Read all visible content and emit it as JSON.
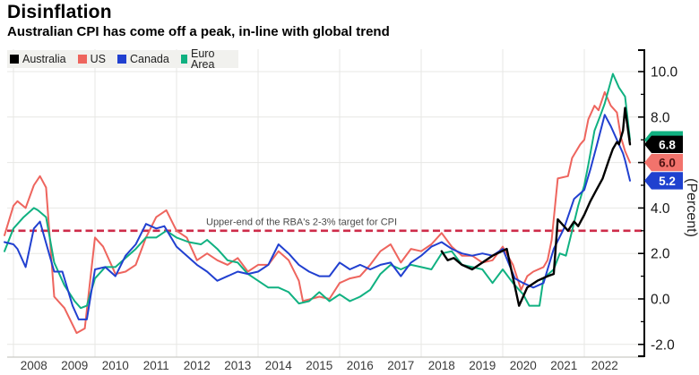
{
  "header": {
    "title": "Disinflation",
    "subtitle": "Australian CPI has come off a peak, in-line with global trend"
  },
  "legend": {
    "items": [
      {
        "label": "Australia",
        "color": "#000000"
      },
      {
        "label": "US",
        "color": "#ee655e"
      },
      {
        "label": "Canada",
        "color": "#2140d0"
      },
      {
        "label": "Euro Area",
        "color": "#10b181"
      }
    ]
  },
  "annotation": {
    "text": "Upper-end of the RBA's 2-3% target for CPI",
    "value": 3.0,
    "line_color": "#ce2b49",
    "text_color": "#4a4a4a"
  },
  "axis": {
    "y_label": "(Percent)",
    "y_ticks": [
      {
        "v": 10,
        "label": "10.0"
      },
      {
        "v": 8,
        "label": "8.0"
      },
      {
        "v": 6,
        "label": ""
      },
      {
        "v": 4,
        "label": "4.0"
      },
      {
        "v": 2,
        "label": "2.0"
      },
      {
        "v": 0,
        "label": "0.0"
      },
      {
        "v": -2,
        "label": "-2.0"
      }
    ],
    "y_minor_ticks": [
      9,
      7,
      5,
      3,
      1,
      -1
    ],
    "x_grid_years": [
      2008,
      2010,
      2012,
      2014,
      2016,
      2018,
      2020,
      2022
    ],
    "x_labels": [
      "2008",
      "2009",
      "2010",
      "2011",
      "2012",
      "2013",
      "2014",
      "2015",
      "2016",
      "2017",
      "2018",
      "2019",
      "2020",
      "2021",
      "2022"
    ]
  },
  "chart_data": {
    "type": "line",
    "title": "Disinflation",
    "subtitle": "Australian CPI has come off a peak, in-line with global trend",
    "xlabel": "",
    "ylabel": "(Percent)",
    "xlim": [
      2007.7,
      2023.45
    ],
    "ylim": [
      -2.6,
      10.6
    ],
    "grid": true,
    "legend_position": "top-left",
    "target_line": {
      "y": 3.0,
      "label": "Upper-end of the RBA's 2-3% target for CPI"
    },
    "series": [
      {
        "name": "Australia",
        "color": "#000000",
        "width": 2.4,
        "tag": {
          "text": "6.8",
          "bg": "#000000",
          "fg": "#ffffff",
          "value": 6.8
        },
        "points": [
          [
            2018.5,
            2.1
          ],
          [
            2018.65,
            1.7
          ],
          [
            2018.8,
            1.8
          ],
          [
            2019.0,
            1.5
          ],
          [
            2019.25,
            1.3
          ],
          [
            2019.5,
            1.6
          ],
          [
            2019.75,
            1.9
          ],
          [
            2020.1,
            2.2
          ],
          [
            2020.4,
            -0.3
          ],
          [
            2020.6,
            0.5
          ],
          [
            2020.85,
            0.8
          ],
          [
            2021.1,
            1.0
          ],
          [
            2021.25,
            1.1
          ],
          [
            2021.35,
            3.5
          ],
          [
            2021.5,
            3.2
          ],
          [
            2021.6,
            3.0
          ],
          [
            2021.75,
            3.4
          ],
          [
            2021.85,
            3.2
          ],
          [
            2022.0,
            3.7
          ],
          [
            2022.15,
            4.3
          ],
          [
            2022.3,
            4.8
          ],
          [
            2022.45,
            5.3
          ],
          [
            2022.6,
            6.1
          ],
          [
            2022.7,
            6.6
          ],
          [
            2022.8,
            6.9
          ],
          [
            2022.85,
            6.8
          ],
          [
            2022.95,
            7.4
          ],
          [
            2023.0,
            8.4
          ],
          [
            2023.12,
            6.8
          ]
        ]
      },
      {
        "name": "US",
        "color": "#ee655e",
        "width": 2,
        "tag": {
          "text": "6.0",
          "bg": "#f2736c",
          "fg": "#4d1211",
          "value": 6.0
        },
        "points": [
          [
            2007.78,
            2.8
          ],
          [
            2008.0,
            4.1
          ],
          [
            2008.1,
            4.3
          ],
          [
            2008.3,
            4.0
          ],
          [
            2008.5,
            5.0
          ],
          [
            2008.65,
            5.4
          ],
          [
            2008.8,
            4.9
          ],
          [
            2009.0,
            0.1
          ],
          [
            2009.25,
            -0.4
          ],
          [
            2009.55,
            -1.5
          ],
          [
            2009.75,
            -1.3
          ],
          [
            2010.0,
            2.7
          ],
          [
            2010.2,
            2.3
          ],
          [
            2010.5,
            1.1
          ],
          [
            2010.75,
            1.2
          ],
          [
            2011.0,
            1.5
          ],
          [
            2011.25,
            2.7
          ],
          [
            2011.5,
            3.6
          ],
          [
            2011.75,
            3.9
          ],
          [
            2012.0,
            3.0
          ],
          [
            2012.25,
            2.7
          ],
          [
            2012.5,
            1.7
          ],
          [
            2012.75,
            2.0
          ],
          [
            2013.0,
            1.7
          ],
          [
            2013.25,
            1.5
          ],
          [
            2013.5,
            1.8
          ],
          [
            2013.75,
            1.2
          ],
          [
            2014.0,
            1.5
          ],
          [
            2014.25,
            1.5
          ],
          [
            2014.5,
            2.1
          ],
          [
            2014.75,
            1.7
          ],
          [
            2015.0,
            0.8
          ],
          [
            2015.1,
            -0.1
          ],
          [
            2015.3,
            0.0
          ],
          [
            2015.5,
            0.1
          ],
          [
            2015.75,
            0.0
          ],
          [
            2016.0,
            0.7
          ],
          [
            2016.25,
            0.9
          ],
          [
            2016.5,
            1.0
          ],
          [
            2016.75,
            1.5
          ],
          [
            2017.0,
            2.1
          ],
          [
            2017.25,
            2.4
          ],
          [
            2017.5,
            1.6
          ],
          [
            2017.75,
            2.2
          ],
          [
            2018.0,
            2.1
          ],
          [
            2018.25,
            2.4
          ],
          [
            2018.5,
            2.9
          ],
          [
            2018.75,
            2.3
          ],
          [
            2019.0,
            1.9
          ],
          [
            2019.25,
            1.9
          ],
          [
            2019.5,
            1.6
          ],
          [
            2019.75,
            1.7
          ],
          [
            2020.0,
            2.3
          ],
          [
            2020.25,
            1.5
          ],
          [
            2020.45,
            0.4
          ],
          [
            2020.6,
            1.0
          ],
          [
            2020.75,
            1.2
          ],
          [
            2021.0,
            1.4
          ],
          [
            2021.1,
            1.7
          ],
          [
            2021.2,
            2.6
          ],
          [
            2021.35,
            5.3
          ],
          [
            2021.6,
            5.4
          ],
          [
            2021.7,
            6.2
          ],
          [
            2021.9,
            6.8
          ],
          [
            2022.0,
            7.0
          ],
          [
            2022.1,
            7.9
          ],
          [
            2022.25,
            8.5
          ],
          [
            2022.35,
            8.3
          ],
          [
            2022.5,
            9.1
          ],
          [
            2022.65,
            8.5
          ],
          [
            2022.8,
            8.2
          ],
          [
            2022.9,
            7.1
          ],
          [
            2023.0,
            6.5
          ],
          [
            2023.12,
            6.0
          ]
        ]
      },
      {
        "name": "Canada",
        "color": "#2140d0",
        "width": 2,
        "tag": {
          "text": "5.2",
          "bg": "#1f41cf",
          "fg": "#ffffff",
          "value": 5.2
        },
        "points": [
          [
            2007.78,
            2.5
          ],
          [
            2008.0,
            2.4
          ],
          [
            2008.1,
            2.2
          ],
          [
            2008.3,
            1.4
          ],
          [
            2008.5,
            3.1
          ],
          [
            2008.65,
            3.4
          ],
          [
            2009.0,
            1.2
          ],
          [
            2009.2,
            1.2
          ],
          [
            2009.45,
            -0.3
          ],
          [
            2009.6,
            -0.9
          ],
          [
            2009.8,
            -0.9
          ],
          [
            2010.0,
            1.3
          ],
          [
            2010.25,
            1.4
          ],
          [
            2010.5,
            1.0
          ],
          [
            2010.75,
            1.9
          ],
          [
            2011.0,
            2.4
          ],
          [
            2011.25,
            3.3
          ],
          [
            2011.5,
            3.1
          ],
          [
            2011.7,
            3.2
          ],
          [
            2012.0,
            2.3
          ],
          [
            2012.25,
            1.9
          ],
          [
            2012.5,
            1.5
          ],
          [
            2012.75,
            1.2
          ],
          [
            2013.0,
            0.8
          ],
          [
            2013.25,
            1.0
          ],
          [
            2013.5,
            1.2
          ],
          [
            2013.75,
            1.1
          ],
          [
            2014.0,
            1.2
          ],
          [
            2014.25,
            1.5
          ],
          [
            2014.5,
            2.4
          ],
          [
            2014.75,
            2.0
          ],
          [
            2015.0,
            1.5
          ],
          [
            2015.25,
            1.2
          ],
          [
            2015.5,
            1.0
          ],
          [
            2015.75,
            1.0
          ],
          [
            2016.0,
            1.6
          ],
          [
            2016.25,
            1.3
          ],
          [
            2016.5,
            1.5
          ],
          [
            2016.75,
            1.3
          ],
          [
            2017.0,
            1.5
          ],
          [
            2017.25,
            1.6
          ],
          [
            2017.5,
            1.0
          ],
          [
            2017.75,
            1.6
          ],
          [
            2018.0,
            1.9
          ],
          [
            2018.25,
            2.3
          ],
          [
            2018.5,
            2.5
          ],
          [
            2018.75,
            2.2
          ],
          [
            2019.0,
            2.0
          ],
          [
            2019.25,
            1.9
          ],
          [
            2019.5,
            2.0
          ],
          [
            2019.75,
            1.9
          ],
          [
            2020.0,
            2.2
          ],
          [
            2020.3,
            0.9
          ],
          [
            2020.5,
            0.7
          ],
          [
            2020.75,
            0.5
          ],
          [
            2021.0,
            0.7
          ],
          [
            2021.25,
            2.2
          ],
          [
            2021.5,
            3.1
          ],
          [
            2021.75,
            4.4
          ],
          [
            2022.0,
            4.8
          ],
          [
            2022.15,
            5.7
          ],
          [
            2022.3,
            6.7
          ],
          [
            2022.5,
            8.1
          ],
          [
            2022.65,
            7.6
          ],
          [
            2022.8,
            7.0
          ],
          [
            2022.95,
            6.4
          ],
          [
            2023.0,
            6.1
          ],
          [
            2023.12,
            5.2
          ]
        ]
      },
      {
        "name": "Euro Area",
        "color": "#10b181",
        "width": 2,
        "tag": {
          "text": "",
          "bg": "#10b181",
          "fg": "#ffffff",
          "value": 7.0,
          "hidden_behind": "Australia"
        },
        "points": [
          [
            2007.78,
            2.1
          ],
          [
            2008.0,
            3.1
          ],
          [
            2008.25,
            3.6
          ],
          [
            2008.5,
            4.0
          ],
          [
            2008.6,
            3.9
          ],
          [
            2008.8,
            3.6
          ],
          [
            2009.0,
            1.6
          ],
          [
            2009.25,
            0.6
          ],
          [
            2009.5,
            -0.1
          ],
          [
            2009.65,
            -0.4
          ],
          [
            2009.8,
            -0.3
          ],
          [
            2010.0,
            0.9
          ],
          [
            2010.25,
            1.4
          ],
          [
            2010.5,
            1.4
          ],
          [
            2010.75,
            1.8
          ],
          [
            2011.0,
            2.2
          ],
          [
            2011.25,
            2.7
          ],
          [
            2011.5,
            2.7
          ],
          [
            2011.75,
            3.0
          ],
          [
            2012.0,
            2.7
          ],
          [
            2012.3,
            2.5
          ],
          [
            2012.6,
            2.4
          ],
          [
            2012.75,
            2.6
          ],
          [
            2013.0,
            2.2
          ],
          [
            2013.25,
            1.7
          ],
          [
            2013.5,
            1.6
          ],
          [
            2013.75,
            1.1
          ],
          [
            2014.0,
            0.8
          ],
          [
            2014.25,
            0.5
          ],
          [
            2014.5,
            0.5
          ],
          [
            2014.75,
            0.3
          ],
          [
            2015.0,
            -0.2
          ],
          [
            2015.25,
            -0.1
          ],
          [
            2015.5,
            0.3
          ],
          [
            2015.75,
            -0.1
          ],
          [
            2016.0,
            0.2
          ],
          [
            2016.25,
            -0.1
          ],
          [
            2016.5,
            0.1
          ],
          [
            2016.75,
            0.4
          ],
          [
            2017.0,
            1.1
          ],
          [
            2017.25,
            1.5
          ],
          [
            2017.5,
            1.3
          ],
          [
            2017.75,
            1.5
          ],
          [
            2018.0,
            1.4
          ],
          [
            2018.25,
            1.3
          ],
          [
            2018.5,
            2.0
          ],
          [
            2018.75,
            2.1
          ],
          [
            2019.0,
            1.5
          ],
          [
            2019.25,
            1.4
          ],
          [
            2019.5,
            1.3
          ],
          [
            2019.75,
            0.7
          ],
          [
            2020.0,
            1.3
          ],
          [
            2020.25,
            0.7
          ],
          [
            2020.5,
            0.2
          ],
          [
            2020.65,
            -0.3
          ],
          [
            2020.9,
            -0.3
          ],
          [
            2021.0,
            0.9
          ],
          [
            2021.25,
            1.3
          ],
          [
            2021.4,
            2.0
          ],
          [
            2021.55,
            1.9
          ],
          [
            2021.7,
            3.0
          ],
          [
            2021.85,
            4.1
          ],
          [
            2022.0,
            5.0
          ],
          [
            2022.1,
            5.9
          ],
          [
            2022.25,
            7.4
          ],
          [
            2022.4,
            8.1
          ],
          [
            2022.5,
            8.6
          ],
          [
            2022.7,
            9.9
          ],
          [
            2022.85,
            9.3
          ],
          [
            2023.0,
            8.9
          ],
          [
            2023.12,
            7.0
          ]
        ]
      }
    ]
  }
}
